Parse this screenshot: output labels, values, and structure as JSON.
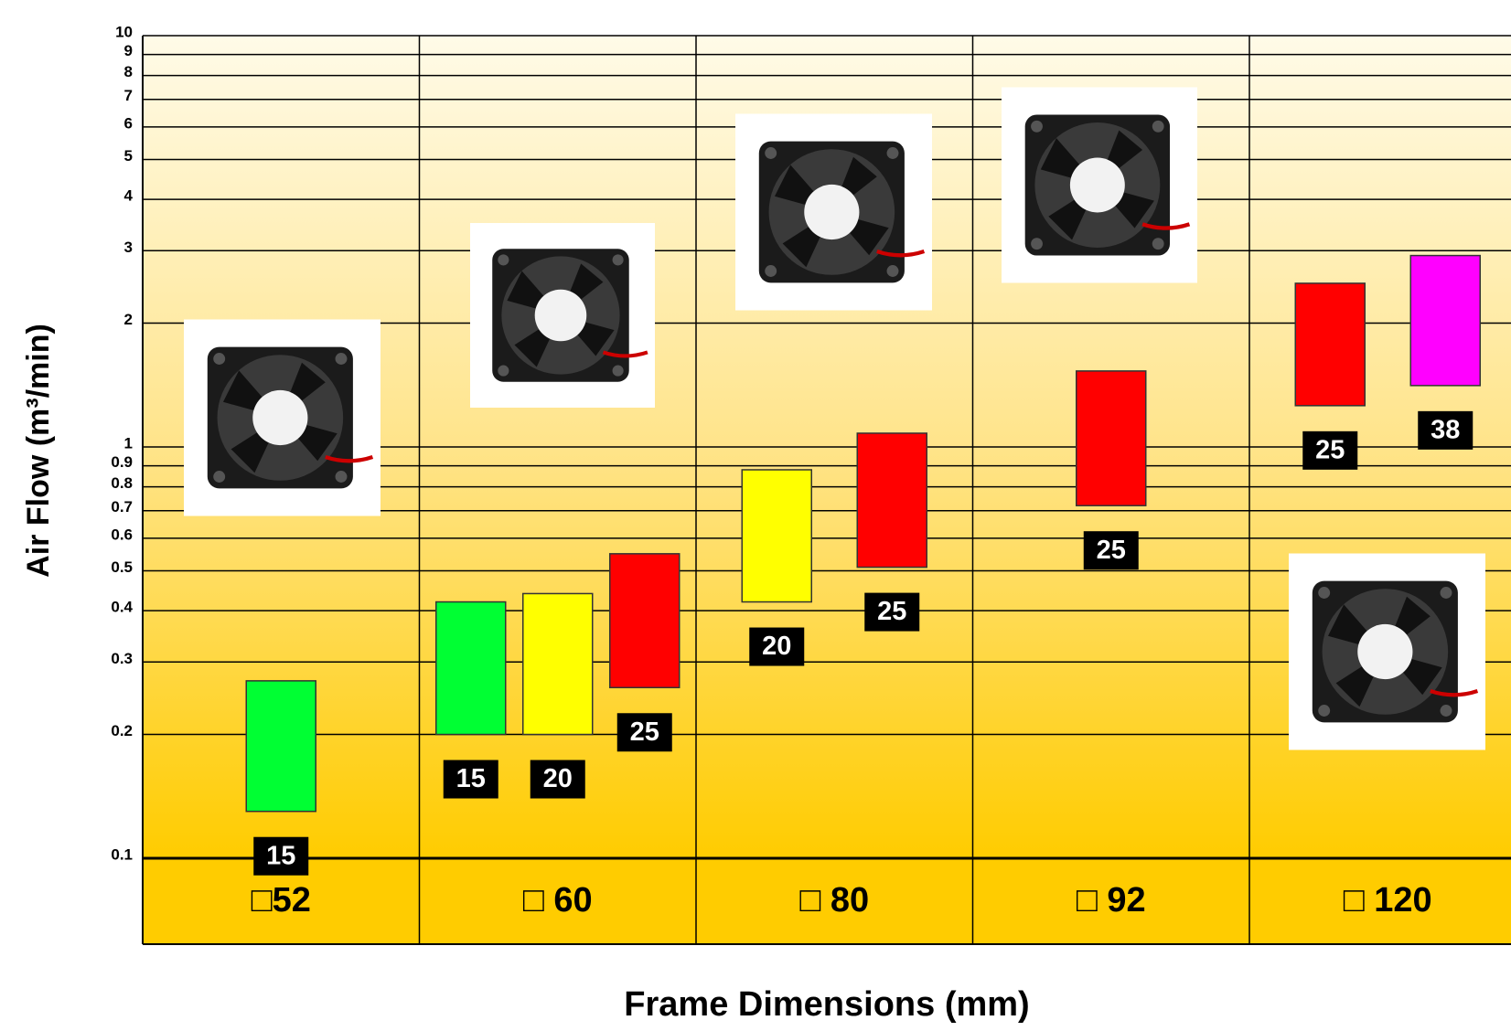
{
  "chart_data": {
    "type": "range_bar",
    "y_label": "Air Flow (m³/min)",
    "x_label": "Frame Dimensions (mm)",
    "categories": [
      "□52",
      "□ 60",
      "□ 80",
      "□ 92",
      "□ 120"
    ],
    "series": [
      {
        "name": "15",
        "color": "#00ff33",
        "low": [
          0.13,
          0.2,
          null,
          null,
          null
        ],
        "high": [
          0.27,
          0.42,
          null,
          null,
          null
        ]
      },
      {
        "name": "20",
        "color": "#ffff00",
        "low": [
          null,
          0.2,
          0.42,
          null,
          null
        ],
        "high": [
          null,
          0.44,
          0.88,
          null,
          null
        ]
      },
      {
        "name": "25",
        "color": "#ff0000",
        "low": [
          null,
          0.26,
          0.51,
          0.72,
          1.26
        ],
        "high": [
          null,
          0.55,
          1.08,
          1.53,
          2.5
        ]
      },
      {
        "name": "38",
        "color": "#ff00ff",
        "low": [
          null,
          null,
          null,
          null,
          1.41
        ],
        "high": [
          null,
          null,
          null,
          null,
          2.92
        ]
      }
    ],
    "log_scale": true,
    "ylim": [
      0.1,
      10
    ],
    "yticks": [
      0.1,
      0.2,
      0.3,
      0.4,
      0.5,
      0.6,
      0.7,
      0.8,
      0.9,
      1,
      2,
      3,
      4,
      5,
      6,
      7,
      8,
      9,
      10
    ],
    "grid": true
  }
}
